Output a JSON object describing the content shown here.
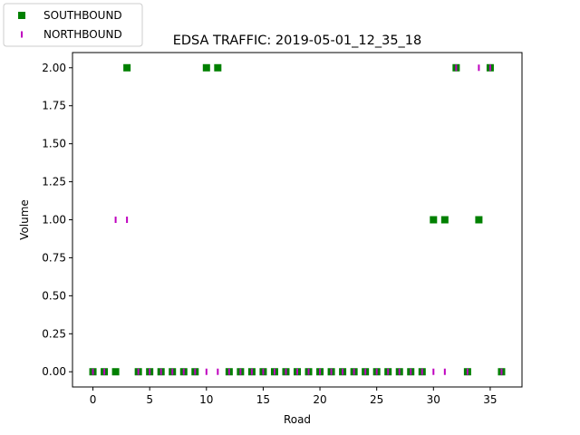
{
  "chart_data": {
    "type": "scatter",
    "title": "EDSA TRAFFIC: 2019-05-01_12_35_18",
    "xlabel": "Road",
    "ylabel": "Volume",
    "xlim": [
      -1.8,
      37.8
    ],
    "ylim": [
      -0.1,
      2.1
    ],
    "xticks": [
      0,
      5,
      10,
      15,
      20,
      25,
      30,
      35
    ],
    "xtick_labels": [
      "0",
      "5",
      "10",
      "15",
      "20",
      "25",
      "30",
      "35"
    ],
    "yticks": [
      0,
      0.25,
      0.5,
      0.75,
      1.0,
      1.25,
      1.5,
      1.75,
      2.0
    ],
    "ytick_labels": [
      "0.00",
      "0.25",
      "0.50",
      "0.75",
      "1.00",
      "1.25",
      "1.50",
      "1.75",
      "2.00"
    ],
    "grid": false,
    "legend_position": "top-left, outside plot",
    "series": [
      {
        "name": "SOUTHBOUND",
        "marker": "square",
        "color": "#008000",
        "x": [
          0,
          1,
          2,
          3,
          4,
          5,
          6,
          7,
          8,
          9,
          10,
          11,
          12,
          13,
          14,
          15,
          16,
          17,
          18,
          19,
          20,
          21,
          22,
          23,
          24,
          25,
          26,
          27,
          28,
          29,
          30,
          31,
          32,
          33,
          34,
          35,
          36
        ],
        "y": [
          0,
          0,
          0,
          2,
          0,
          0,
          0,
          0,
          0,
          0,
          2,
          2,
          0,
          0,
          0,
          0,
          0,
          0,
          0,
          0,
          0,
          0,
          0,
          0,
          0,
          0,
          0,
          0,
          0,
          0,
          1,
          1,
          2,
          0,
          1,
          2,
          0
        ]
      },
      {
        "name": "NORTHBOUND",
        "marker": "vline",
        "color": "#bf00bf",
        "x": [
          0,
          1,
          2,
          3,
          4,
          5,
          6,
          7,
          8,
          9,
          10,
          11,
          12,
          13,
          14,
          15,
          16,
          17,
          18,
          19,
          20,
          21,
          22,
          23,
          24,
          25,
          26,
          27,
          28,
          29,
          30,
          31,
          32,
          33,
          34,
          35,
          36
        ],
        "y": [
          0,
          0,
          1,
          1,
          0,
          0,
          0,
          0,
          0,
          0,
          0,
          0,
          0,
          0,
          0,
          0,
          0,
          0,
          0,
          0,
          0,
          0,
          0,
          0,
          0,
          0,
          0,
          0,
          0,
          0,
          0,
          0,
          2,
          0,
          2,
          2,
          0
        ]
      }
    ]
  }
}
